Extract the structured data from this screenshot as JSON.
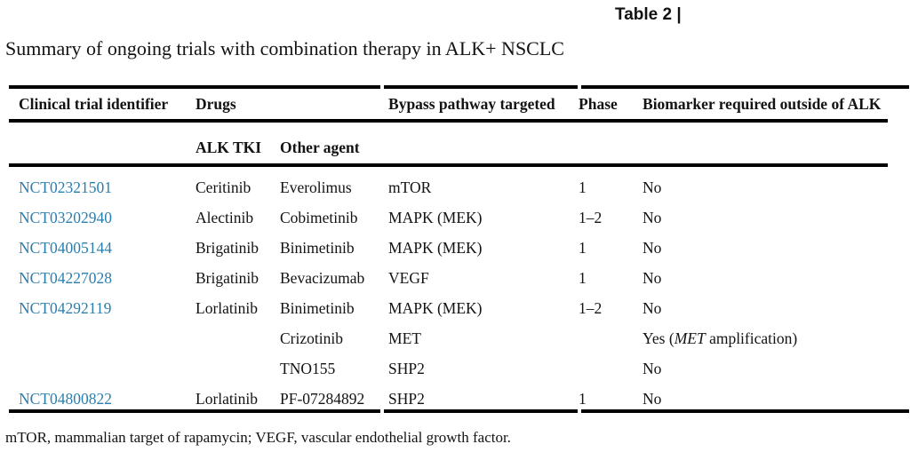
{
  "table_label": "Table 2 |",
  "title": "Summary of ongoing trials with combination therapy in ALK+ NSCLC",
  "columns": {
    "trial": "Clinical trial identifier",
    "drugs": "Drugs",
    "pathway": "Bypass pathway targeted",
    "phase": "Phase",
    "biomarker": "Biomarker required outside of ALK"
  },
  "sub_columns": {
    "alk_tki": "ALK TKI",
    "other_agent": "Other agent"
  },
  "rows": [
    {
      "id": "NCT02321501",
      "alk_tki": "Ceritinib",
      "other_agent": "Everolimus",
      "pathway": "mTOR",
      "phase": "1",
      "biomarker": [
        {
          "text": "No",
          "italic": false
        }
      ]
    },
    {
      "id": "NCT03202940",
      "alk_tki": "Alectinib",
      "other_agent": "Cobimetinib",
      "pathway": "MAPK (MEK)",
      "phase": "1–2",
      "biomarker": [
        {
          "text": "No",
          "italic": false
        }
      ]
    },
    {
      "id": "NCT04005144",
      "alk_tki": "Brigatinib",
      "other_agent": "Binimetinib",
      "pathway": "MAPK (MEK)",
      "phase": "1",
      "biomarker": [
        {
          "text": "No",
          "italic": false
        }
      ]
    },
    {
      "id": "NCT04227028",
      "alk_tki": "Brigatinib",
      "other_agent": "Bevacizumab",
      "pathway": "VEGF",
      "phase": "1",
      "biomarker": [
        {
          "text": "No",
          "italic": false
        }
      ]
    },
    {
      "id": "NCT04292119",
      "alk_tki": "Lorlatinib",
      "other_agent": "Binimetinib",
      "pathway": "MAPK (MEK)",
      "phase": "1–2",
      "biomarker": [
        {
          "text": "No",
          "italic": false
        }
      ]
    },
    {
      "id": "",
      "alk_tki": "",
      "other_agent": "Crizotinib",
      "pathway": "MET",
      "phase": "",
      "biomarker": [
        {
          "text": "Yes (",
          "italic": false
        },
        {
          "text": "MET",
          "italic": true
        },
        {
          "text": " amplification)",
          "italic": false
        }
      ]
    },
    {
      "id": "",
      "alk_tki": "",
      "other_agent": "TNO155",
      "pathway": "SHP2",
      "phase": "",
      "biomarker": [
        {
          "text": "No",
          "italic": false
        }
      ]
    },
    {
      "id": "NCT04800822",
      "alk_tki": "Lorlatinib",
      "other_agent": "PF-07284892",
      "pathway": "SHP2",
      "phase": "1",
      "biomarker": [
        {
          "text": "No",
          "italic": false
        }
      ]
    }
  ],
  "footnote": "mTOR, mammalian target of rapamycin; VEGF, vascular endothelial growth factor.",
  "colors": {
    "link": "#2b7fae",
    "text": "#131313",
    "rule": "#000000"
  }
}
